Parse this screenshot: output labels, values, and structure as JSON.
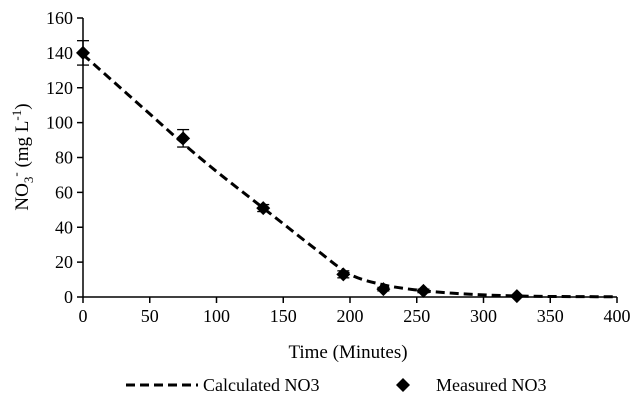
{
  "chart_data": {
    "type": "line",
    "title": "",
    "xlabel": "Time (Minutes)",
    "ylabel_main": "NO",
    "ylabel_sub": "3",
    "ylabel_sup1": "-",
    "ylabel_mid": " (mg L",
    "ylabel_sup2": "-1",
    "ylabel_end": ")",
    "xlim": [
      0,
      400
    ],
    "ylim": [
      0,
      160
    ],
    "xticks": [
      0,
      50,
      100,
      150,
      200,
      250,
      300,
      350,
      400
    ],
    "yticks": [
      0,
      20,
      40,
      60,
      80,
      100,
      120,
      140,
      160
    ],
    "grid": false,
    "legend_position": "bottom",
    "series": [
      {
        "name": "Calculated NO3",
        "style": "dashed-line",
        "color": "#000000",
        "x": [
          0,
          25,
          50,
          75,
          100,
          125,
          150,
          175,
          200,
          225,
          250,
          275,
          300,
          325,
          350,
          375,
          400
        ],
        "y": [
          139,
          122,
          105,
          88,
          72,
          57,
          42,
          27,
          13,
          7,
          4,
          2.3,
          1.2,
          0.6,
          0.3,
          0.2,
          0.1
        ]
      },
      {
        "name": "Measured NO3",
        "style": "diamond-marker",
        "color": "#000000",
        "x": [
          0,
          75,
          135,
          195,
          225,
          255,
          325
        ],
        "y": [
          140,
          91,
          51,
          13,
          4.5,
          3.5,
          0.5
        ],
        "error": [
          7,
          5,
          2,
          2,
          1,
          1,
          0.5
        ]
      }
    ]
  }
}
